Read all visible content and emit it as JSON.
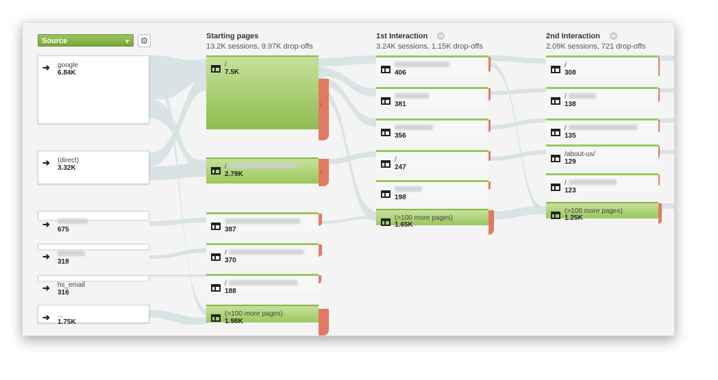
{
  "source_dropdown": {
    "label": "Source",
    "caret": "▾"
  },
  "settings_icon": "⚙",
  "columns": [
    {
      "title": "Starting pages",
      "summary": "13.2K sessions, 9.97K drop-offs"
    },
    {
      "title": "1st Interaction",
      "summary": "3.24K sessions, 1.15K drop-offs",
      "close_icon": "⊗"
    },
    {
      "title": "2nd Interaction",
      "summary": "2.09K sessions, 721 drop-offs",
      "close_icon": "⊗"
    }
  ],
  "sources": [
    {
      "label": "google",
      "value": "6.84K"
    },
    {
      "label": "(direct)",
      "value": "3.32K"
    },
    {
      "label": "",
      "value": "675"
    },
    {
      "label": "",
      "value": "318"
    },
    {
      "label": "hs_email",
      "value": "316"
    },
    {
      "label": "...",
      "value": "1.75K"
    }
  ],
  "starting_pages": [
    {
      "label": "/",
      "value": "7.5K"
    },
    {
      "label": "/",
      "value": "2.79K"
    },
    {
      "label": "",
      "value": "387"
    },
    {
      "label": "/",
      "value": "370"
    },
    {
      "label": "/",
      "value": "188"
    },
    {
      "label": "(>100 more pages)",
      "value": "1.98K"
    }
  ],
  "first_interaction": [
    {
      "label": "",
      "value": "406"
    },
    {
      "label": "",
      "value": "381"
    },
    {
      "label": "",
      "value": "356"
    },
    {
      "label": "/",
      "value": "247"
    },
    {
      "label": "",
      "value": "198"
    },
    {
      "label": "(>100 more pages)",
      "value": "1.65K"
    }
  ],
  "second_interaction": [
    {
      "label": "/",
      "value": "308"
    },
    {
      "label": "/",
      "value": "138"
    },
    {
      "label": "/",
      "value": "135"
    },
    {
      "label": "/about-us/",
      "value": "129"
    },
    {
      "label": "/",
      "value": "123"
    },
    {
      "label": "(>100 more pages)",
      "value": "1.25K"
    }
  ],
  "drop_arrow": "↓",
  "source_arrow": "➔"
}
